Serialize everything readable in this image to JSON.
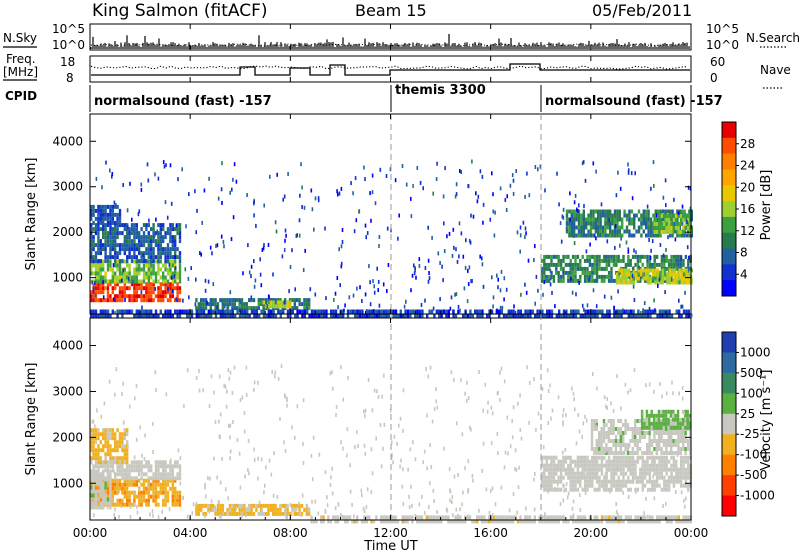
{
  "header": {
    "station": "King Salmon (fitACF)",
    "beam": "Beam 15",
    "date": "05/Feb/2011"
  },
  "status_panels": {
    "nsky_label": "N.Sky",
    "nsearch_label": "N.Search",
    "freq_label_line1": "Freq.",
    "freq_label_line2": "[MHz]",
    "nave_label": "Nave",
    "cpid_label": "CPID",
    "noise_ticks_left": [
      "10^5",
      "10^0"
    ],
    "noise_ticks_right": [
      "10^5",
      "10^0"
    ],
    "freq_ticks": [
      "18",
      "8"
    ],
    "nave_ticks": [
      "60",
      "0"
    ],
    "cpid_segments": [
      {
        "label": "normalsound (fast) -157",
        "start_hour": 0
      },
      {
        "label": "themis 3300",
        "start_hour": 12
      },
      {
        "label": "normalsound (fast) -157",
        "start_hour": 18
      }
    ]
  },
  "axes": {
    "xlabel": "Time UT",
    "ylabel": "Slant Range [km]",
    "x_ticks": [
      "00:00",
      "04:00",
      "08:00",
      "12:00",
      "16:00",
      "20:00",
      "00:00"
    ],
    "y_ticks": [
      "1000",
      "2000",
      "3000",
      "4000"
    ]
  },
  "colorbars": {
    "power_label": "Power [dB]",
    "power_ticks": [
      "28",
      "24",
      "20",
      "16",
      "12",
      "8",
      "4"
    ],
    "power_colors": [
      "#e60000",
      "#ff4d00",
      "#ff8000",
      "#ffa500",
      "#e8c800",
      "#a0d030",
      "#3aa040",
      "#2a7a50",
      "#2060a0",
      "#1030d0",
      "#0000ff"
    ],
    "velocity_label": "Velocity [m s⁻¹]",
    "velocity_ticks": [
      "1000",
      "500",
      "100",
      "25",
      "-25",
      "-100",
      "-500",
      "-1000"
    ],
    "velocity_colors": [
      "#1f3fb0",
      "#2d6aa0",
      "#3a8a60",
      "#5ab040",
      "#c8c8c0",
      "#f0b020",
      "#ff8000",
      "#ff4000",
      "#ff0000"
    ]
  },
  "chart_data": [
    {
      "type": "heatmap",
      "title": "Power",
      "xlabel": "Time UT",
      "ylabel": "Slant Range [km]",
      "xlim": [
        0,
        24
      ],
      "ylim": [
        200,
        4600
      ],
      "colorbar": "Power [dB]",
      "clim": [
        0,
        32
      ],
      "regions": [
        {
          "t": [
            0.0,
            3.6
          ],
          "r": [
            500,
            900
          ],
          "value": 29
        },
        {
          "t": [
            0.0,
            3.6
          ],
          "r": [
            900,
            1400
          ],
          "value": 15
        },
        {
          "t": [
            0.0,
            3.6
          ],
          "r": [
            1400,
            2200
          ],
          "value": 7
        },
        {
          "t": [
            0.0,
            1.2
          ],
          "r": [
            2200,
            2600
          ],
          "value": 6
        },
        {
          "t": [
            4.2,
            8.8
          ],
          "r": [
            300,
            550
          ],
          "value": 9
        },
        {
          "t": [
            6.8,
            8.0
          ],
          "r": [
            350,
            500
          ],
          "value": 17
        },
        {
          "t": [
            18.0,
            24.0
          ],
          "r": [
            900,
            1500
          ],
          "value": 11
        },
        {
          "t": [
            21.0,
            24.0
          ],
          "r": [
            900,
            1200
          ],
          "value": 17
        },
        {
          "t": [
            19.0,
            24.0
          ],
          "r": [
            1900,
            2500
          ],
          "value": 10
        },
        {
          "t": [
            22.5,
            24.0
          ],
          "r": [
            2000,
            2400
          ],
          "value": 15
        },
        {
          "t": [
            0.0,
            24.0
          ],
          "r": [
            200,
            300
          ],
          "value": 5
        }
      ],
      "scatter": [
        {
          "t": [
            0.0,
            24.0
          ],
          "r": [
            300,
            3600
          ],
          "value": 5
        }
      ]
    },
    {
      "type": "heatmap",
      "title": "Velocity",
      "xlabel": "Time UT",
      "ylabel": "Slant Range [km]",
      "xlim": [
        0,
        24
      ],
      "ylim": [
        200,
        4600
      ],
      "colorbar": "Velocity [m s⁻¹]",
      "clim": [
        -1000,
        1000
      ],
      "regions": [
        {
          "t": [
            0.0,
            3.6
          ],
          "r": [
            500,
            1100
          ],
          "value": -300
        },
        {
          "t": [
            0.0,
            0.8
          ],
          "r": [
            500,
            1300
          ],
          "value": 60
        },
        {
          "t": [
            0.0,
            3.6
          ],
          "r": [
            1100,
            1500
          ],
          "value": 0
        },
        {
          "t": [
            0.0,
            1.5
          ],
          "r": [
            1500,
            2200
          ],
          "value": -150
        },
        {
          "t": [
            4.2,
            8.8
          ],
          "r": [
            300,
            550
          ],
          "value": -150
        },
        {
          "t": [
            8.8,
            24.0
          ],
          "r": [
            200,
            300
          ],
          "value": -60
        },
        {
          "t": [
            18.0,
            24.0
          ],
          "r": [
            850,
            1600
          ],
          "value": 0
        },
        {
          "t": [
            20.0,
            24.0
          ],
          "r": [
            1700,
            2400
          ],
          "value": 60
        },
        {
          "t": [
            22.0,
            24.0
          ],
          "r": [
            2200,
            2600
          ],
          "value": 150
        }
      ],
      "scatter": [
        {
          "t": [
            0.0,
            24.0
          ],
          "r": [
            300,
            3600
          ],
          "value": 0
        }
      ]
    }
  ]
}
